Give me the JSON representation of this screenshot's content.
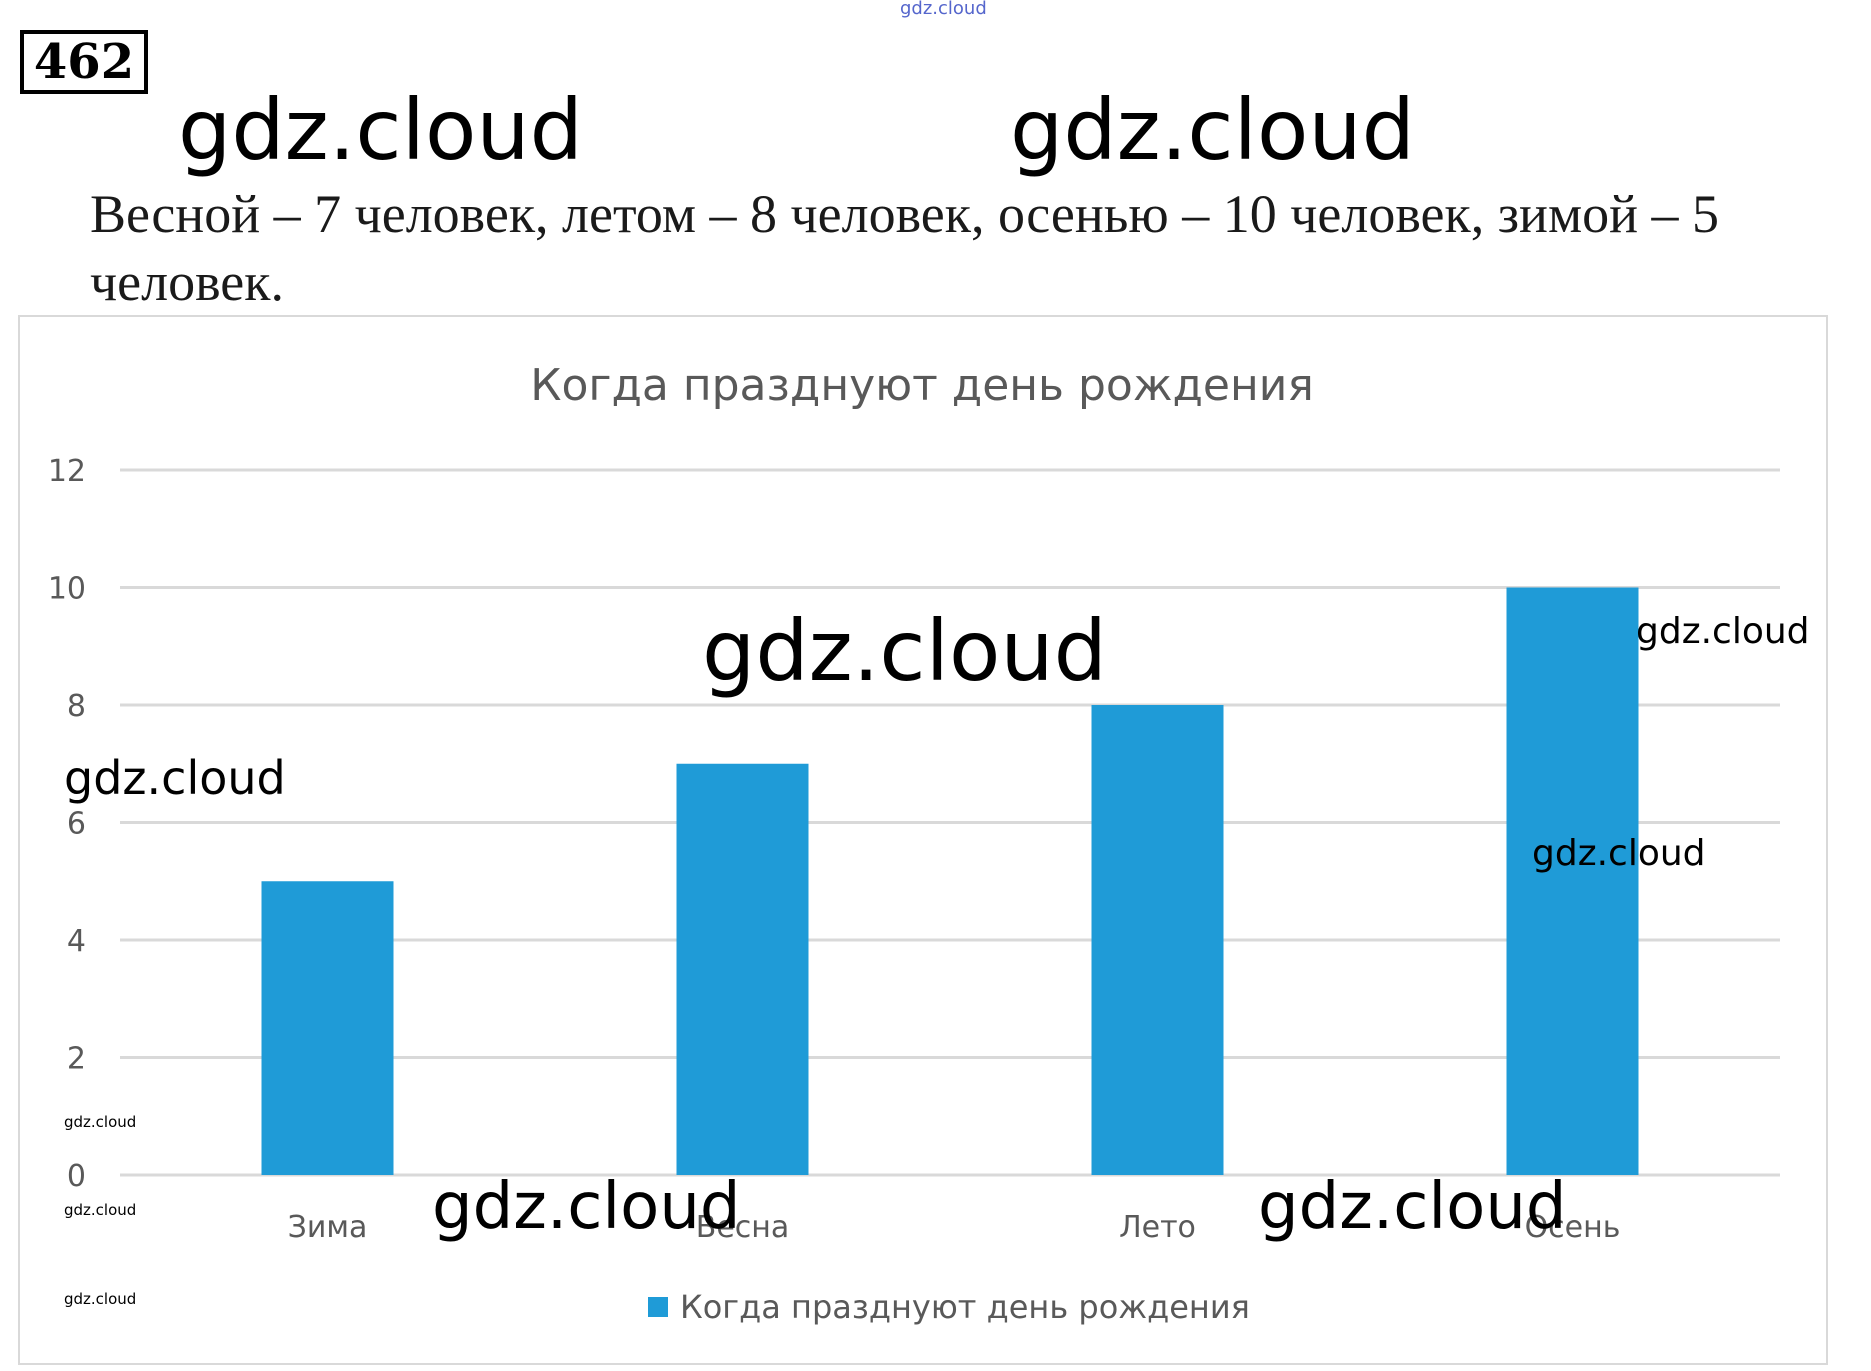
{
  "task": {
    "number": "462"
  },
  "problem": {
    "text": "Весной – 7 человек, летом – 8 человек, осенью – 10 человек, зимой – 5 человек."
  },
  "watermarks": {
    "text": "gdz.cloud"
  },
  "chart_data": {
    "type": "bar",
    "title": "Когда празднуют день рождения",
    "categories": [
      "Зима",
      "Весна",
      "Лето",
      "Осень"
    ],
    "series": [
      {
        "name": "Когда празднуют день рождения",
        "values": [
          5,
          7,
          8,
          10
        ],
        "color": "#1f9bd7"
      }
    ],
    "ylim": [
      0,
      12
    ],
    "yticks": [
      0,
      2,
      4,
      6,
      8,
      10,
      12
    ],
    "grid": true,
    "legend": "bottom",
    "xlabel": "",
    "ylabel": ""
  },
  "colors": {
    "bar": "#1f9bd7",
    "grid": "#d9d9d9",
    "text": "#595959"
  }
}
